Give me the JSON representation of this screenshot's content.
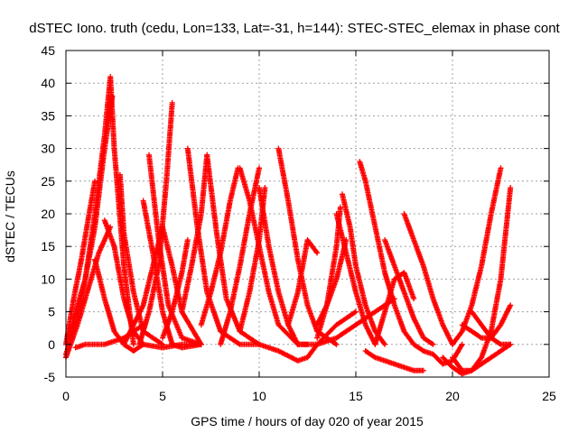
{
  "chart_data": {
    "type": "scatter",
    "title": "dSTEC Iono. truth (cedu, Lon=133, Lat=-31, h=144): STEC-STEC_elemax in phase cont",
    "xlabel": "GPS time / hours of day 020 of year 2015",
    "ylabel": "dSTEC  / TECUs",
    "xlim": [
      0,
      25
    ],
    "ylim": [
      -5,
      45
    ],
    "xticks": [
      0,
      5,
      10,
      15,
      20,
      25
    ],
    "yticks": [
      -5,
      0,
      5,
      10,
      15,
      20,
      25,
      30,
      35,
      40,
      45
    ],
    "grid": true,
    "marker": "+",
    "color": "#ff0000",
    "series": [
      {
        "x": [
          0.0,
          0.5,
          1.0,
          1.5,
          2.0,
          2.3,
          2.5,
          3.0,
          3.5
        ],
        "y": [
          -1.5,
          3,
          10,
          20,
          32,
          41,
          30,
          12,
          0
        ]
      },
      {
        "x": [
          0.1,
          0.5,
          1.0,
          1.5,
          2.0,
          2.4
        ],
        "y": [
          0.5,
          5,
          10,
          18,
          30,
          38
        ]
      },
      {
        "x": [
          0.0,
          0.4,
          0.8,
          1.2,
          1.5
        ],
        "y": [
          0,
          7,
          13,
          20,
          25
        ]
      },
      {
        "x": [
          0.0,
          0.6,
          1.2,
          1.7,
          2.3
        ],
        "y": [
          -2,
          3,
          9,
          14,
          18
        ]
      },
      {
        "x": [
          2.0,
          2.5,
          3.0,
          3.5,
          4.0,
          5.0,
          6.0,
          7.0
        ],
        "y": [
          19,
          15,
          7,
          2,
          0,
          -0.5,
          0,
          0
        ]
      },
      {
        "x": [
          1.5,
          2.0,
          2.5,
          3.0,
          3.5,
          4.0
        ],
        "y": [
          13,
          7,
          2,
          0,
          -1,
          0
        ]
      },
      {
        "x": [
          2.8,
          3.0,
          3.5,
          4.0,
          5.0
        ],
        "y": [
          26,
          17,
          8,
          2,
          0
        ]
      },
      {
        "x": [
          0.5,
          1.0,
          2.0,
          3.0,
          4.0
        ],
        "y": [
          -0.5,
          0,
          0,
          1,
          3
        ]
      },
      {
        "x": [
          3.0,
          4.0,
          4.5,
          5.0,
          5.5,
          6.0,
          7.0
        ],
        "y": [
          0,
          6,
          12,
          18,
          12,
          5,
          0
        ]
      },
      {
        "x": [
          4.0,
          4.5,
          5.0,
          5.5,
          6.0,
          7.0
        ],
        "y": [
          22,
          14,
          5,
          0,
          -0.5,
          0
        ]
      },
      {
        "x": [
          4.3,
          4.8,
          5.3,
          6.0,
          7.0
        ],
        "y": [
          29,
          16,
          6,
          1,
          0
        ]
      },
      {
        "x": [
          3.8,
          4.3,
          4.8,
          5.2,
          5.5
        ],
        "y": [
          0,
          5,
          12,
          25,
          37
        ]
      },
      {
        "x": [
          5.0,
          5.5,
          6.0,
          6.3
        ],
        "y": [
          1,
          5,
          11,
          16
        ]
      },
      {
        "x": [
          6.3,
          6.8,
          7.3,
          8.0,
          9.0,
          10.0
        ],
        "y": [
          30,
          18,
          8,
          2,
          0,
          0
        ]
      },
      {
        "x": [
          7.3,
          7.8,
          8.3,
          9.0,
          10.0
        ],
        "y": [
          29,
          17,
          7,
          2,
          0
        ]
      },
      {
        "x": [
          6.0,
          6.5,
          7.0,
          7.3
        ],
        "y": [
          5,
          12,
          20,
          29
        ]
      },
      {
        "x": [
          7.0,
          7.5,
          8.0,
          8.5,
          8.9
        ],
        "y": [
          3,
          8,
          14,
          22,
          27
        ]
      },
      {
        "x": [
          8.0,
          8.5,
          9.0,
          9.5,
          10.0
        ],
        "y": [
          0,
          5,
          12,
          20,
          27
        ]
      },
      {
        "x": [
          9.0,
          9.5,
          10.0,
          10.5,
          11.0,
          12.0
        ],
        "y": [
          27,
          22,
          15,
          8,
          3,
          0
        ]
      },
      {
        "x": [
          10.0,
          10.5,
          11.0,
          11.5,
          12.0,
          12.5
        ],
        "y": [
          24,
          15,
          8,
          3,
          0,
          0
        ]
      },
      {
        "x": [
          9.0,
          9.5,
          10.0,
          10.3
        ],
        "y": [
          2,
          8,
          16,
          24
        ]
      },
      {
        "x": [
          11.0,
          11.5,
          12.0,
          12.5,
          13.0,
          14.0
        ],
        "y": [
          30,
          22,
          13,
          6,
          2,
          0
        ]
      },
      {
        "x": [
          10.0,
          11.0,
          12.0,
          12.5,
          13.0,
          14.0,
          15.0
        ],
        "y": [
          0,
          -1,
          -2.5,
          -2,
          0,
          3,
          5
        ]
      },
      {
        "x": [
          11.5,
          12.0,
          12.5,
          13.0
        ],
        "y": [
          3,
          8,
          16,
          14
        ]
      },
      {
        "x": [
          12.0,
          13.0,
          14.0,
          15.0,
          16.0,
          17.0
        ],
        "y": [
          0,
          0,
          1,
          3,
          5,
          7
        ]
      },
      {
        "x": [
          13.0,
          13.5,
          14.0,
          14.2
        ],
        "y": [
          1,
          6,
          15,
          21
        ]
      },
      {
        "x": [
          14.0,
          14.5,
          15.0,
          15.5,
          16.0
        ],
        "y": [
          20,
          14,
          8,
          3,
          0
        ]
      },
      {
        "x": [
          14.3,
          14.7,
          15.0,
          15.5,
          16.0,
          16.5
        ],
        "y": [
          23,
          18,
          12,
          6,
          2,
          0
        ]
      },
      {
        "x": [
          13.0,
          13.5,
          14.0,
          14.5
        ],
        "y": [
          3,
          6,
          10,
          16
        ]
      },
      {
        "x": [
          15.2,
          15.5,
          16.0,
          16.5,
          17.0,
          17.5,
          18.0
        ],
        "y": [
          28,
          25,
          18,
          11,
          6,
          2,
          0
        ]
      },
      {
        "x": [
          15.5,
          16.0,
          16.5,
          17.0,
          17.5,
          18.0,
          18.5
        ],
        "y": [
          -1,
          -2,
          -2.5,
          -3,
          -3.5,
          -4,
          -4
        ]
      },
      {
        "x": [
          16.0,
          16.5,
          17.0,
          17.5,
          18.0
        ],
        "y": [
          0,
          5,
          10,
          11,
          7
        ]
      },
      {
        "x": [
          16.5,
          17.0,
          17.5,
          18.0,
          18.5,
          19.0
        ],
        "y": [
          16,
          12,
          8,
          4,
          1,
          0
        ]
      },
      {
        "x": [
          17.5,
          18.0,
          18.5,
          19.0,
          19.5,
          20.0
        ],
        "y": [
          20,
          16,
          12,
          7,
          3,
          0
        ]
      },
      {
        "x": [
          18.0,
          18.5,
          19.0,
          19.5,
          20.0,
          20.5
        ],
        "y": [
          0,
          -1,
          -1.5,
          -3,
          -2.5,
          0
        ]
      },
      {
        "x": [
          19.5,
          20.0,
          20.5,
          21.0,
          22.0,
          23.0
        ],
        "y": [
          -2,
          -3.5,
          -4.5,
          -4,
          -2,
          0
        ]
      },
      {
        "x": [
          20.0,
          20.5,
          21.0,
          21.5,
          22.0,
          22.5,
          23.0
        ],
        "y": [
          -2,
          -4,
          -4,
          -2,
          2,
          10,
          24
        ]
      },
      {
        "x": [
          20.0,
          20.5,
          21.0,
          21.5,
          22.0,
          22.5
        ],
        "y": [
          0,
          2,
          6,
          12,
          20,
          27
        ]
      },
      {
        "x": [
          20.5,
          21.0,
          21.5,
          22.0,
          22.5,
          23.0
        ],
        "y": [
          3,
          2,
          1,
          1,
          3,
          6
        ]
      },
      {
        "x": [
          21.0,
          21.5,
          22.0,
          22.5,
          23.0
        ],
        "y": [
          5,
          3,
          1,
          0,
          0
        ]
      }
    ]
  }
}
